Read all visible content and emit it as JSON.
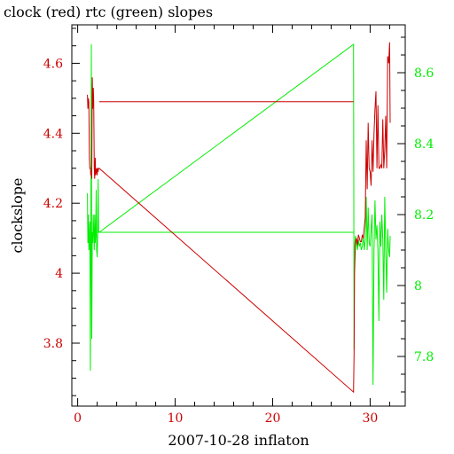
{
  "chart_data": {
    "type": "line",
    "title": "clock (red) rtc (green) slopes",
    "xlabel": "2007-10-28 inflaton",
    "ylabel": "clockslope",
    "xlim": [
      -0.6,
      33.6
    ],
    "ylim": [
      3.62,
      4.71
    ],
    "y2lim": [
      7.66,
      8.735
    ],
    "x_ticks": [
      0,
      10,
      20,
      30
    ],
    "x_minor_step": 2,
    "y_ticks": [
      3.8,
      4,
      4.2,
      4.4,
      4.6
    ],
    "y_tick_labels": [
      "3.8",
      "4",
      "4.2",
      "4.4",
      "4.6"
    ],
    "y_minor_step": 0.05,
    "y2_ticks": [
      7.8,
      8,
      8.2,
      8.4,
      8.6
    ],
    "y2_tick_labels": [
      "7.8",
      "8",
      "8.2",
      "8.4",
      "8.6"
    ],
    "y2_minor_step": 0.05,
    "grid": false,
    "colors": {
      "clock": "#cc0000",
      "rtc": "#00ee00",
      "axis_left": "#cc0000",
      "axis_right": "#00ee00",
      "frame": "#000000"
    },
    "series": [
      {
        "axis": "left",
        "x": [
          1.0,
          1.05,
          1.1,
          1.15,
          1.2,
          1.25,
          1.3,
          1.35,
          1.4,
          1.45,
          1.5,
          1.55,
          1.6,
          1.65,
          1.7,
          1.75,
          1.8,
          1.85,
          1.9,
          1.95,
          2.0,
          2.05,
          2.1,
          2.15,
          2.2,
          28.3,
          28.35,
          28.4,
          28.5,
          28.6,
          28.7,
          28.8,
          28.9,
          29.0,
          29.1,
          29.2,
          29.3,
          29.4,
          29.5,
          29.6,
          29.7,
          29.8,
          29.9,
          30.0,
          30.1,
          30.2,
          30.3,
          30.4,
          30.5,
          30.6,
          30.7,
          30.8,
          30.9,
          31.0,
          31.1,
          31.2,
          31.3,
          31.4,
          31.5,
          31.6,
          31.7,
          31.8,
          31.9,
          32.0,
          32.05
        ],
        "y": [
          4.51,
          4.47,
          4.5,
          4.49,
          4.33,
          4.3,
          4.3,
          4.28,
          4.29,
          4.27,
          4.56,
          4.47,
          4.53,
          4.49,
          4.3,
          4.27,
          4.33,
          4.28,
          4.29,
          4.3,
          4.28,
          4.3,
          4.29,
          4.3,
          4.3,
          3.66,
          3.77,
          4.0,
          4.09,
          4.1,
          4.08,
          4.11,
          4.1,
          4.09,
          4.09,
          4.11,
          4.1,
          4.13,
          4.16,
          4.38,
          4.24,
          4.43,
          4.3,
          4.29,
          4.25,
          4.38,
          4.29,
          4.4,
          4.47,
          4.52,
          4.3,
          4.48,
          4.3,
          4.3,
          4.31,
          4.3,
          4.44,
          4.3,
          4.35,
          4.45,
          4.3,
          4.62,
          4.6,
          4.66,
          4.43
        ]
      },
      {
        "axis": "left",
        "x": [
          2.2,
          28.3
        ],
        "y": [
          4.49,
          4.49
        ]
      },
      {
        "axis": "right",
        "x": [
          1.0,
          1.05,
          1.1,
          1.15,
          1.2,
          1.25,
          1.3,
          1.35,
          1.4,
          1.45,
          1.5,
          1.55,
          1.6,
          1.65,
          1.7,
          1.75,
          1.8,
          1.85,
          1.9,
          1.95,
          2.0,
          2.05,
          2.1,
          2.15,
          2.2,
          28.3,
          28.35,
          28.4,
          28.5,
          28.6,
          28.7,
          28.8,
          28.9,
          29.0,
          29.1,
          29.2,
          29.3,
          29.4,
          29.5,
          29.6,
          29.7,
          29.8,
          29.9,
          30.0,
          30.1,
          30.2,
          30.3,
          30.4,
          30.5,
          30.6,
          30.7,
          30.8,
          30.9,
          31.0,
          31.1,
          31.2,
          31.3,
          31.4,
          31.5,
          31.6,
          31.7,
          31.8,
          31.9,
          32.0,
          32.05
        ],
        "y": [
          8.26,
          8.12,
          8.2,
          8.1,
          8.14,
          8.18,
          7.76,
          8.09,
          8.68,
          7.85,
          8.15,
          8.12,
          8.2,
          8.15,
          8.1,
          8.2,
          8.12,
          8.14,
          8.27,
          8.1,
          8.08,
          8.14,
          8.3,
          8.15,
          8.15,
          8.68,
          7.82,
          8.1,
          8.14,
          8.12,
          8.1,
          8.13,
          8.11,
          8.12,
          8.1,
          8.11,
          8.14,
          8.1,
          8.13,
          8.25,
          8.1,
          8.22,
          8.12,
          8.11,
          8.16,
          8.2,
          7.72,
          8.1,
          8.24,
          8.13,
          8.17,
          8.1,
          7.9,
          8.18,
          8.11,
          8.2,
          8.13,
          7.96,
          8.25,
          8.1,
          7.98,
          8.16,
          8.1,
          8.08,
          8.14
        ]
      },
      {
        "axis": "right",
        "x": [
          2.2,
          28.3
        ],
        "y": [
          8.15,
          8.15
        ]
      }
    ]
  }
}
